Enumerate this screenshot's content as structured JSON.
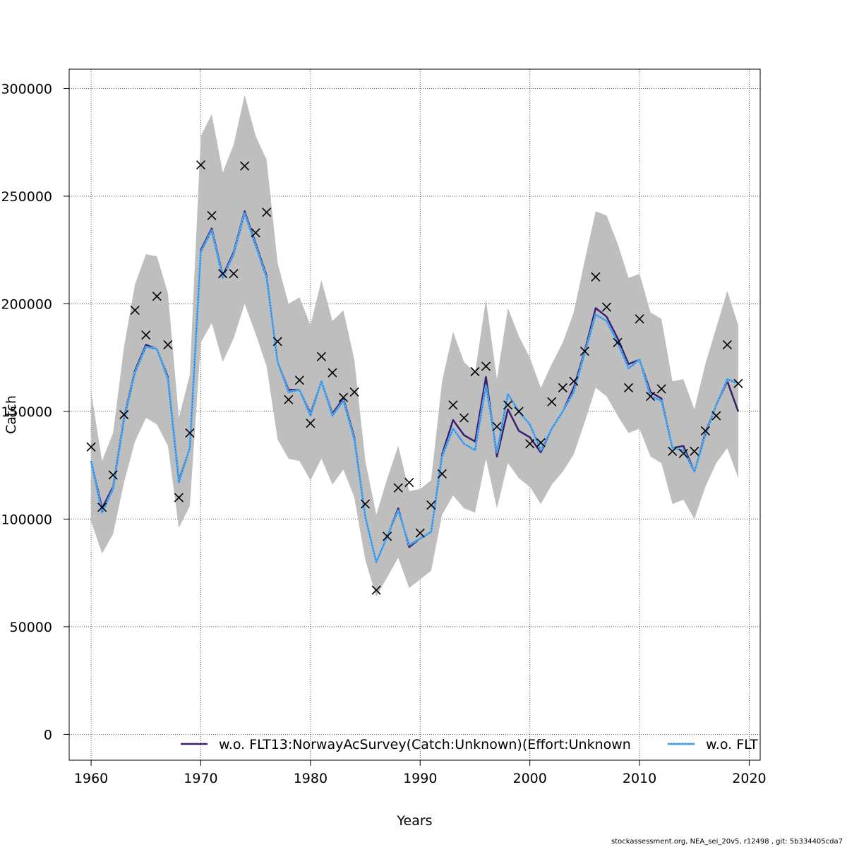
{
  "chart_data": {
    "type": "line",
    "xlabel": "Years",
    "ylabel": "Catch",
    "xlim": [
      1958,
      2021
    ],
    "ylim": [
      -12000,
      309000
    ],
    "x_ticks": [
      1960,
      1970,
      1980,
      1990,
      2000,
      2010,
      2020
    ],
    "y_ticks": [
      0,
      50000,
      100000,
      150000,
      200000,
      250000,
      300000
    ],
    "grid": true,
    "legend_position": "bottom",
    "colors": {
      "band": "#bebebe",
      "series1": "#3b1f6e",
      "series2": "#5ab4f0",
      "series2_core": "#2a58c8",
      "observed": "#000000",
      "grid": "#555555"
    },
    "x": [
      1960,
      1961,
      1962,
      1963,
      1964,
      1965,
      1966,
      1967,
      1968,
      1969,
      1970,
      1971,
      1972,
      1973,
      1974,
      1975,
      1976,
      1977,
      1978,
      1979,
      1980,
      1981,
      1982,
      1983,
      1984,
      1985,
      1986,
      1987,
      1988,
      1989,
      1990,
      1991,
      1992,
      1993,
      1994,
      1995,
      1996,
      1997,
      1998,
      1999,
      2000,
      2001,
      2002,
      2003,
      2004,
      2005,
      2006,
      2007,
      2008,
      2009,
      2010,
      2011,
      2012,
      2013,
      2014,
      2015,
      2016,
      2017,
      2018,
      2019
    ],
    "band_upper": [
      159000,
      127000,
      140000,
      180000,
      209000,
      223000,
      222000,
      205000,
      147000,
      167000,
      278000,
      288000,
      261000,
      274000,
      297000,
      278000,
      267000,
      219000,
      200000,
      203000,
      190000,
      211000,
      192000,
      197000,
      174000,
      127000,
      102000,
      119000,
      134000,
      113000,
      114000,
      118000,
      164000,
      187000,
      173000,
      168000,
      202000,
      165000,
      198000,
      185000,
      175000,
      161000,
      172000,
      182000,
      196000,
      220000,
      243000,
      241000,
      228000,
      212000,
      214000,
      196000,
      193000,
      164000,
      165000,
      151000,
      172000,
      189000,
      206000,
      190000
    ],
    "band_lower": [
      99000,
      84000,
      93000,
      117000,
      136000,
      147000,
      144000,
      134000,
      96000,
      106000,
      182000,
      191000,
      173000,
      184000,
      200000,
      186000,
      171000,
      137000,
      128000,
      127000,
      118000,
      128000,
      116000,
      123000,
      110000,
      81000,
      64000,
      73000,
      82000,
      68000,
      72000,
      76000,
      102000,
      111000,
      105000,
      103000,
      128000,
      105000,
      126000,
      119000,
      115000,
      107000,
      116000,
      122000,
      130000,
      145000,
      161000,
      157000,
      148000,
      140000,
      142000,
      129000,
      126000,
      107000,
      109000,
      100000,
      115000,
      126000,
      133000,
      119000
    ],
    "series": [
      {
        "name": "w.o. FLT13:NorwayAcSurvey(Catch:Unknown)(Effort:Unknown",
        "values": [
          127000,
          105000,
          115000,
          147000,
          169000,
          181000,
          179000,
          166000,
          118000,
          133000,
          225000,
          235000,
          213000,
          224000,
          243000,
          228000,
          213000,
          173000,
          160000,
          160000,
          149000,
          164000,
          149000,
          156000,
          138000,
          101000,
          80000,
          92000,
          105000,
          87000,
          91000,
          94000,
          130000,
          146000,
          139000,
          136000,
          166000,
          129000,
          151000,
          141000,
          138000,
          131000,
          142000,
          150000,
          161000,
          178000,
          198000,
          194000,
          184000,
          172000,
          174000,
          159000,
          156000,
          133000,
          134000,
          122000,
          140000,
          153000,
          164000,
          150000
        ]
      },
      {
        "name": "w.o. FLT",
        "values": [
          127000,
          103000,
          114000,
          146000,
          168000,
          180000,
          179000,
          165000,
          117000,
          133000,
          224000,
          234000,
          212000,
          223000,
          242000,
          227000,
          212000,
          173000,
          159000,
          160000,
          148000,
          164000,
          148000,
          155000,
          137000,
          101000,
          80000,
          92000,
          104000,
          88000,
          91000,
          94000,
          129000,
          142000,
          135000,
          132000,
          162000,
          131000,
          158000,
          150000,
          144000,
          132000,
          142000,
          150000,
          159000,
          177000,
          195000,
          192000,
          182000,
          170000,
          174000,
          157000,
          155000,
          133000,
          132000,
          122000,
          139000,
          153000,
          165000,
          163000
        ]
      }
    ],
    "observed": {
      "x": [
        1960,
        1961,
        1962,
        1963,
        1964,
        1965,
        1966,
        1967,
        1968,
        1969,
        1970,
        1971,
        1972,
        1973,
        1974,
        1975,
        1976,
        1977,
        1978,
        1979,
        1980,
        1981,
        1982,
        1983,
        1984,
        1985,
        1986,
        1987,
        1988,
        1989,
        1990,
        1991,
        1992,
        1993,
        1994,
        1995,
        1996,
        1997,
        1998,
        1999,
        2000,
        2001,
        2002,
        2003,
        2004,
        2005,
        2006,
        2007,
        2008,
        2009,
        2010,
        2011,
        2012,
        2013,
        2014,
        2015,
        2016,
        2017,
        2018,
        2019
      ],
      "y": [
        133500,
        105500,
        120500,
        148500,
        197000,
        185500,
        203500,
        181000,
        110000,
        140000,
        264500,
        241000,
        214000,
        214000,
        264000,
        233000,
        242500,
        182500,
        155500,
        164500,
        144500,
        175500,
        168000,
        156500,
        159000,
        107000,
        67000,
        92000,
        114500,
        117000,
        93500,
        106500,
        121000,
        153000,
        147000,
        168500,
        171000,
        143000,
        153000,
        150000,
        135000,
        135500,
        154500,
        161000,
        164000,
        178000,
        212500,
        198500,
        182000,
        161000,
        193000,
        157000,
        160500,
        131500,
        130500,
        131500,
        141000,
        148000,
        181000,
        163000
      ]
    },
    "legend": [
      {
        "label": "w.o. FLT13:NorwayAcSurvey(Catch:Unknown)(Effort:Unknown",
        "style": "solid"
      },
      {
        "label": "w.o. FLT",
        "style": "dotted"
      }
    ]
  },
  "footer": {
    "text": "stockassessment.org, NEA_sei_20v5, r12498 , git: 5b334405cda7"
  }
}
